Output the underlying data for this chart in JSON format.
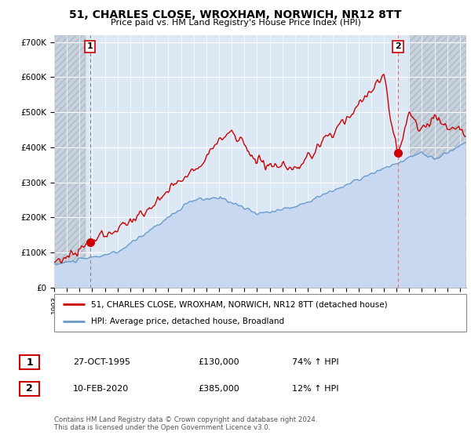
{
  "title": "51, CHARLES CLOSE, WROXHAM, NORWICH, NR12 8TT",
  "subtitle": "Price paid vs. HM Land Registry's House Price Index (HPI)",
  "ylabel_ticks": [
    "£0",
    "£100K",
    "£200K",
    "£300K",
    "£400K",
    "£500K",
    "£600K",
    "£700K"
  ],
  "ytick_values": [
    0,
    100000,
    200000,
    300000,
    400000,
    500000,
    600000,
    700000
  ],
  "ylim": [
    0,
    720000
  ],
  "xlim_start": 1993.0,
  "xlim_end": 2025.5,
  "sale1_x": 1995.83,
  "sale1_y": 130000,
  "sale2_x": 2020.12,
  "sale2_y": 385000,
  "vline1_x": 1995.83,
  "vline2_x": 2020.12,
  "legend_line1": "51, CHARLES CLOSE, WROXHAM, NORWICH, NR12 8TT (detached house)",
  "legend_line2": "HPI: Average price, detached house, Broadland",
  "table_row1_num": "1",
  "table_row1_date": "27-OCT-1995",
  "table_row1_price": "£130,000",
  "table_row1_hpi": "74% ↑ HPI",
  "table_row2_num": "2",
  "table_row2_date": "10-FEB-2020",
  "table_row2_price": "£385,000",
  "table_row2_hpi": "12% ↑ HPI",
  "footer": "Contains HM Land Registry data © Crown copyright and database right 2024.\nThis data is licensed under the Open Government Licence v3.0.",
  "hpi_color": "#6699cc",
  "hpi_fill_color": "#c8d8f0",
  "price_color": "#cc0000",
  "vline1_color": "#888888",
  "vline2_color": "#ff6666",
  "bg_color": "#dde8f5",
  "hatch_color": "#bbccdd",
  "grid_color": "#ffffff"
}
